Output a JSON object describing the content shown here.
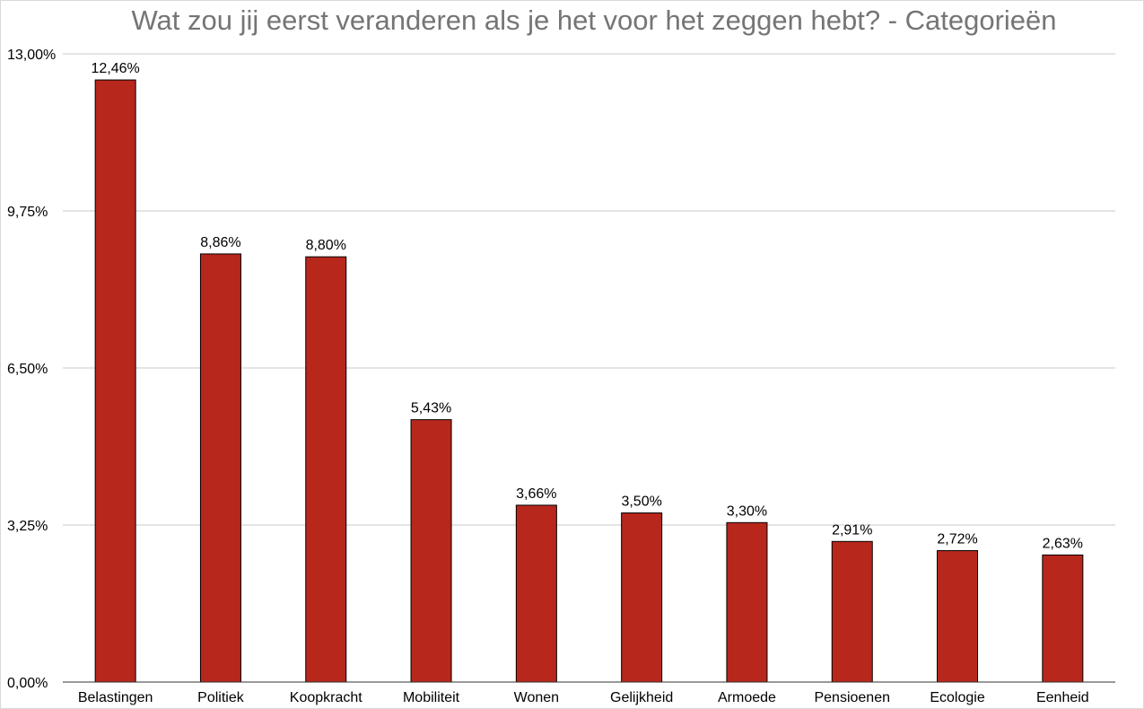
{
  "chart_data": {
    "type": "bar",
    "title": "Wat zou jij eerst veranderen als je het voor het zeggen hebt? - Categorieën",
    "xlabel": "",
    "ylabel": "",
    "categories": [
      "Belastingen",
      "Politiek",
      "Koopkracht",
      "Mobiliteit",
      "Wonen",
      "Gelijkheid",
      "Armoede",
      "Pensioenen",
      "Ecologie",
      "Eenheid"
    ],
    "values": [
      12.46,
      8.86,
      8.8,
      5.43,
      3.66,
      3.5,
      3.3,
      2.91,
      2.72,
      2.63
    ],
    "value_labels": [
      "12,46%",
      "8,86%",
      "8,80%",
      "5,43%",
      "3,66%",
      "3,50%",
      "3,30%",
      "2,91%",
      "2,72%",
      "2,63%"
    ],
    "ylim": [
      0,
      13
    ],
    "yticks": [
      0,
      3.25,
      6.5,
      9.75,
      13
    ],
    "ytick_labels": [
      "0,00%",
      "3,25%",
      "6,50%",
      "9,75%",
      "13,00%"
    ],
    "grid": true,
    "legend": "none",
    "bar_color": "#b7271c",
    "bar_outline_color": "#000000",
    "title_color": "#757575",
    "grid_color": "#c8c8c8"
  }
}
